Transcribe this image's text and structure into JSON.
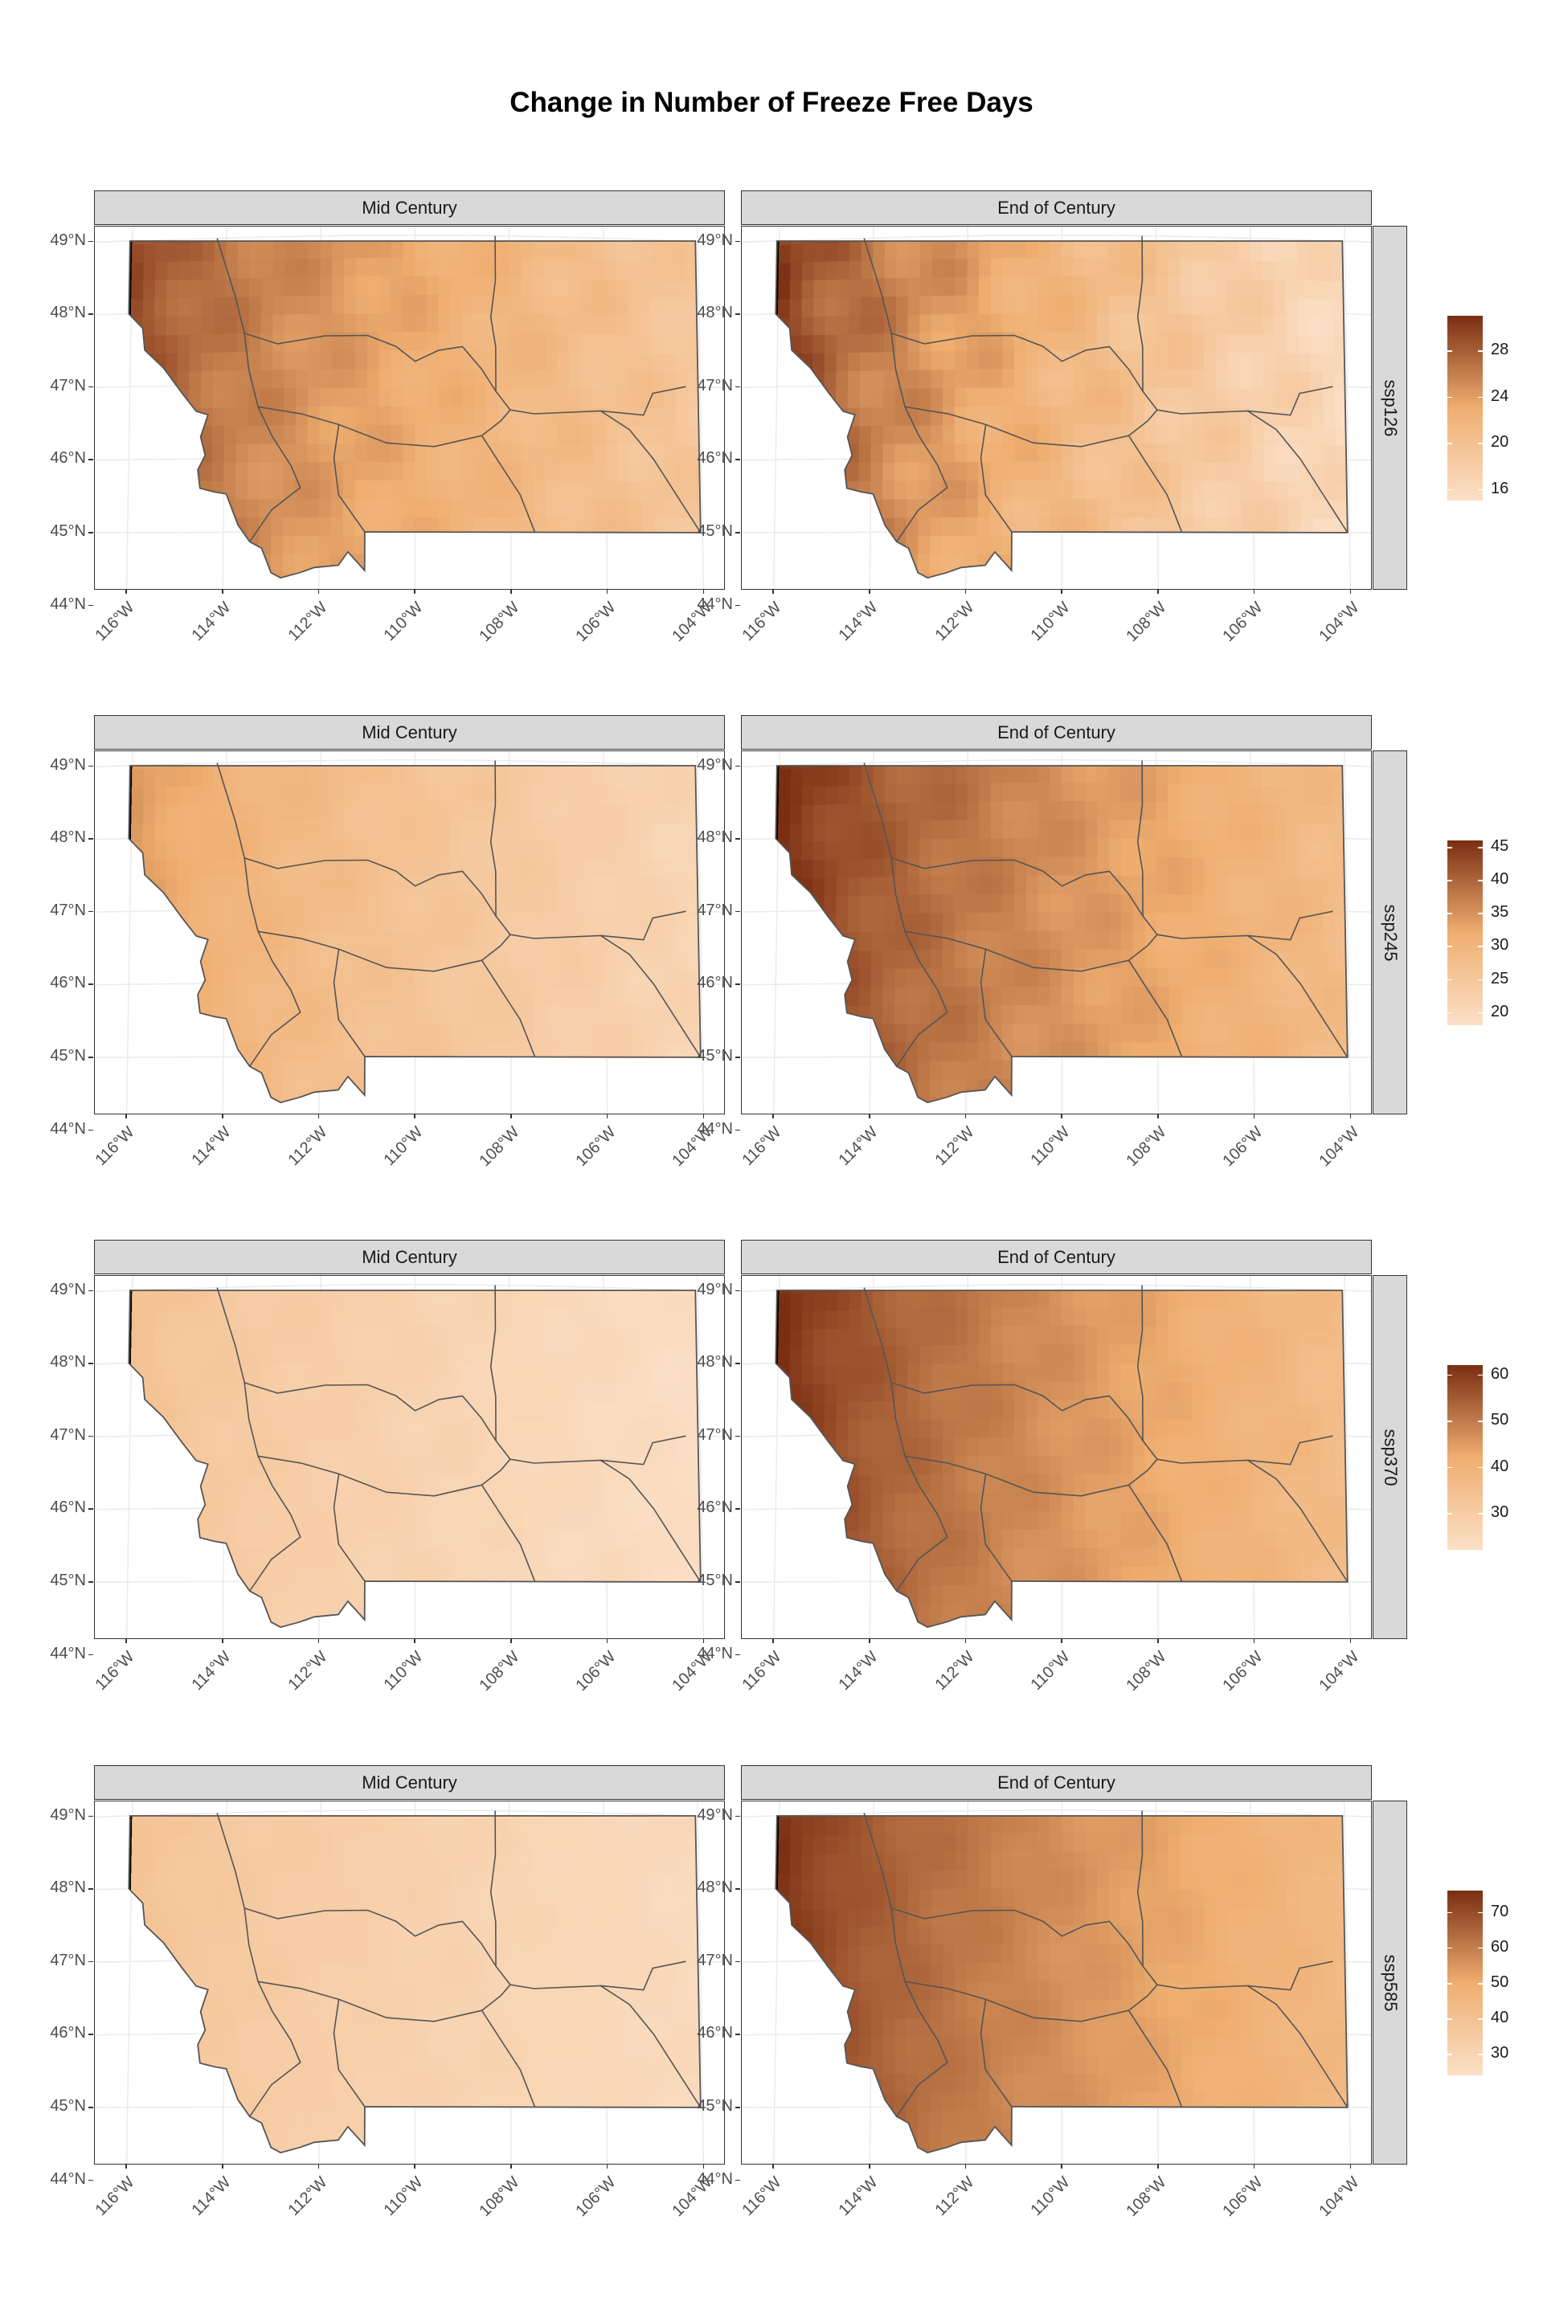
{
  "title": "Change in Number of Freeze Free Days",
  "columns": [
    "Mid Century",
    "End of Century"
  ],
  "y_axis_labels": [
    "49°N",
    "48°N",
    "47°N",
    "46°N",
    "45°N",
    "44°N"
  ],
  "x_axis_labels": [
    "116°W",
    "114°W",
    "112°W",
    "110°W",
    "108°W",
    "106°W",
    "104°W"
  ],
  "colors": {
    "low": "#fbe0c7",
    "mid": "#efae70",
    "high": "#7a2e12",
    "strip": "#d9d9d9",
    "border": "#555555"
  },
  "rows": [
    {
      "scenario": "ssp126",
      "legend": {
        "min": 15,
        "max": 31,
        "ticks": [
          "16",
          "20",
          "24",
          "28"
        ],
        "tick_values": [
          16,
          20,
          24,
          28
        ]
      },
      "panels": [
        {
          "west": 28,
          "east": 19
        },
        {
          "west": 29,
          "east": 16
        }
      ]
    },
    {
      "scenario": "ssp245",
      "legend": {
        "min": 18,
        "max": 46,
        "ticks": [
          "20",
          "25",
          "30",
          "35",
          "40",
          "45"
        ],
        "tick_values": [
          20,
          25,
          30,
          35,
          40,
          45
        ]
      },
      "panels": [
        {
          "west": 33,
          "east": 21
        },
        {
          "west": 45,
          "east": 28
        }
      ]
    },
    {
      "scenario": "ssp370",
      "legend": {
        "min": 22,
        "max": 62,
        "ticks": [
          "30",
          "40",
          "50",
          "60"
        ],
        "tick_values": [
          30,
          40,
          50,
          60
        ]
      },
      "panels": [
        {
          "west": 33,
          "east": 23
        },
        {
          "west": 61,
          "east": 36
        }
      ]
    },
    {
      "scenario": "ssp585",
      "legend": {
        "min": 24,
        "max": 76,
        "ticks": [
          "30",
          "40",
          "50",
          "60",
          "70"
        ],
        "tick_values": [
          30,
          40,
          50,
          60,
          70
        ]
      },
      "panels": [
        {
          "west": 38,
          "east": 27
        },
        {
          "west": 74,
          "east": 44
        }
      ]
    }
  ]
}
